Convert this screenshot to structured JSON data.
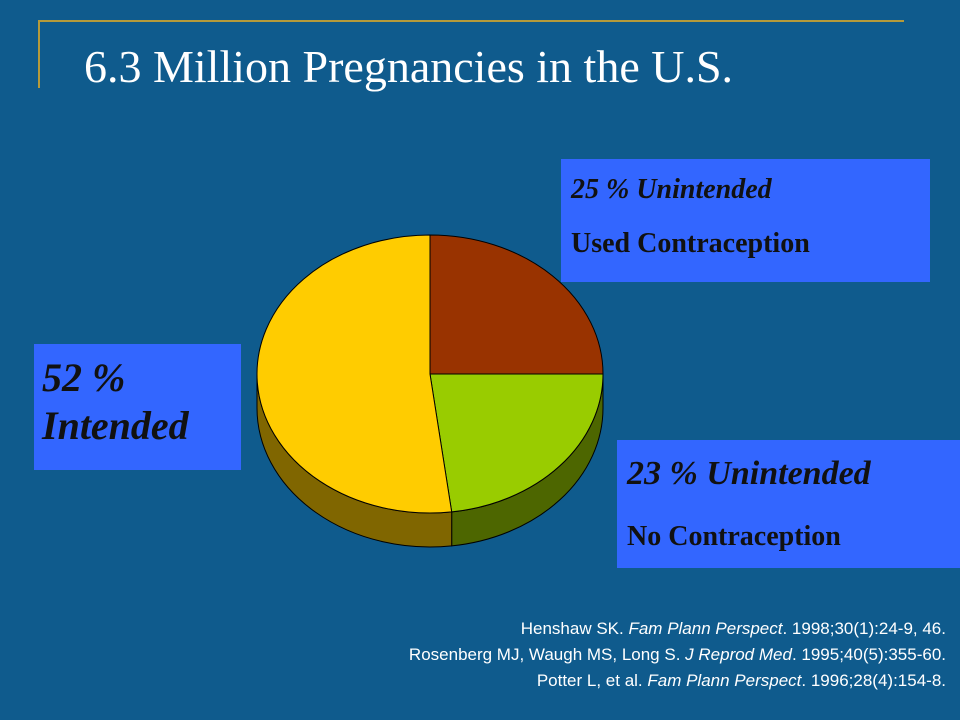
{
  "title": "6.3 Million Pregnancies in the U.S.",
  "chart_data": {
    "type": "pie",
    "slices": [
      {
        "label": "Unintended, Used Contraception",
        "value": 25,
        "color": "#993300",
        "side_color": "#662200"
      },
      {
        "label": "Unintended, No Contraception",
        "value": 23,
        "color": "#99cc00",
        "side_color": "#4d6600"
      },
      {
        "label": "Intended",
        "value": 52,
        "color": "#ffcc00",
        "side_color": "#806600"
      }
    ],
    "start": "12 o'clock",
    "direction": "clockwise",
    "style": "3d"
  },
  "callouts": {
    "used": {
      "pct": "25 %  Unintended",
      "sub": "Used Contraception"
    },
    "nouse": {
      "pct": "23 %  Unintended",
      "sub": "No Contraception"
    },
    "intended": {
      "pct": "52 %",
      "sub": "Intended"
    }
  },
  "references": [
    {
      "authors": "Henshaw SK. ",
      "journal": "Fam Plann Perspect",
      "citation": ". 1998;30(1):24-9, 46."
    },
    {
      "authors": "Rosenberg MJ, Waugh MS, Long S. ",
      "journal": "J Reprod Med",
      "citation": ". 1995;40(5):355-60."
    },
    {
      "authors": "Potter L, et al. ",
      "journal": "Fam Plann Perspect",
      "citation": ". 1996;28(4):154-8."
    }
  ],
  "colors": {
    "background": "#0f5b8d",
    "callout": "#3366ff",
    "rule": "#b59a3a"
  }
}
